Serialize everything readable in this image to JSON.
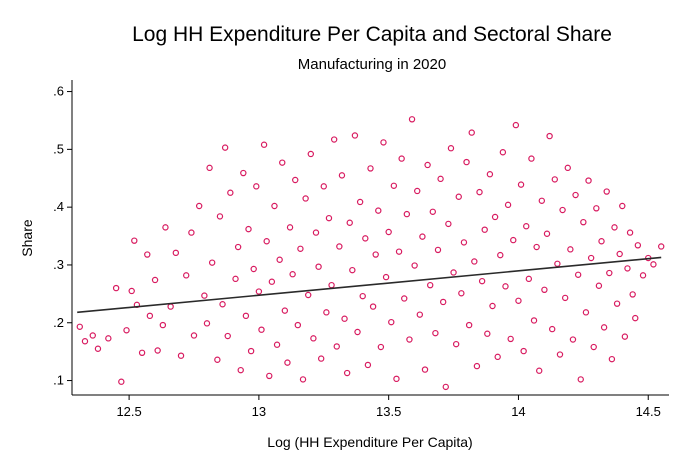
{
  "chart_data": {
    "type": "scatter",
    "title": "Log HH Expenditure Per Capita and Sectoral Share",
    "subtitle": "Manufacturing in 2020",
    "xlabel": "Log (HH Expenditure Per Capita)",
    "ylabel": "Share",
    "xlim": [
      12.28,
      14.58
    ],
    "ylim": [
      0.075,
      0.62
    ],
    "x_ticks": [
      12.5,
      13,
      13.5,
      14,
      14.5
    ],
    "x_tick_labels": [
      "12.5",
      "13",
      "13.5",
      "14",
      "14.5"
    ],
    "y_ticks": [
      0.1,
      0.2,
      0.3,
      0.4,
      0.5,
      0.6
    ],
    "y_tick_labels": [
      ".1",
      ".2",
      ".3",
      ".4",
      ".5",
      ".6"
    ],
    "grid": false,
    "legend": "none",
    "marker_color": "#d81b60",
    "line_color": "#2a2a2a",
    "series": [
      {
        "kind": "points",
        "points": [
          [
            12.31,
            0.193
          ],
          [
            12.33,
            0.168
          ],
          [
            12.36,
            0.178
          ],
          [
            12.38,
            0.155
          ],
          [
            12.42,
            0.173
          ],
          [
            12.45,
            0.26
          ],
          [
            12.47,
            0.098
          ],
          [
            12.49,
            0.187
          ],
          [
            12.51,
            0.255
          ],
          [
            12.52,
            0.342
          ],
          [
            12.53,
            0.231
          ],
          [
            12.55,
            0.148
          ],
          [
            12.57,
            0.318
          ],
          [
            12.58,
            0.212
          ],
          [
            12.6,
            0.274
          ],
          [
            12.61,
            0.152
          ],
          [
            12.63,
            0.196
          ],
          [
            12.64,
            0.365
          ],
          [
            12.66,
            0.228
          ],
          [
            12.68,
            0.321
          ],
          [
            12.7,
            0.143
          ],
          [
            12.72,
            0.282
          ],
          [
            12.74,
            0.356
          ],
          [
            12.75,
            0.178
          ],
          [
            12.77,
            0.402
          ],
          [
            12.79,
            0.247
          ],
          [
            12.8,
            0.199
          ],
          [
            12.81,
            0.468
          ],
          [
            12.82,
            0.304
          ],
          [
            12.84,
            0.136
          ],
          [
            12.85,
            0.384
          ],
          [
            12.86,
            0.232
          ],
          [
            12.87,
            0.503
          ],
          [
            12.88,
            0.177
          ],
          [
            12.89,
            0.425
          ],
          [
            12.91,
            0.276
          ],
          [
            12.92,
            0.331
          ],
          [
            12.93,
            0.118
          ],
          [
            12.94,
            0.459
          ],
          [
            12.95,
            0.212
          ],
          [
            12.96,
            0.362
          ],
          [
            12.97,
            0.151
          ],
          [
            12.98,
            0.293
          ],
          [
            12.99,
            0.436
          ],
          [
            13.0,
            0.254
          ],
          [
            13.01,
            0.188
          ],
          [
            13.02,
            0.508
          ],
          [
            13.03,
            0.341
          ],
          [
            13.04,
            0.108
          ],
          [
            13.05,
            0.271
          ],
          [
            13.06,
            0.402
          ],
          [
            13.07,
            0.162
          ],
          [
            13.08,
            0.309
          ],
          [
            13.09,
            0.477
          ],
          [
            13.1,
            0.221
          ],
          [
            13.11,
            0.131
          ],
          [
            13.12,
            0.365
          ],
          [
            13.13,
            0.284
          ],
          [
            13.14,
            0.447
          ],
          [
            13.15,
            0.196
          ],
          [
            13.16,
            0.328
          ],
          [
            13.17,
            0.102
          ],
          [
            13.18,
            0.415
          ],
          [
            13.19,
            0.248
          ],
          [
            13.2,
            0.492
          ],
          [
            13.21,
            0.173
          ],
          [
            13.22,
            0.356
          ],
          [
            13.23,
            0.297
          ],
          [
            13.24,
            0.138
          ],
          [
            13.25,
            0.436
          ],
          [
            13.26,
            0.218
          ],
          [
            13.27,
            0.381
          ],
          [
            13.28,
            0.265
          ],
          [
            13.29,
            0.517
          ],
          [
            13.3,
            0.159
          ],
          [
            13.31,
            0.332
          ],
          [
            13.32,
            0.455
          ],
          [
            13.33,
            0.207
          ],
          [
            13.34,
            0.113
          ],
          [
            13.35,
            0.373
          ],
          [
            13.36,
            0.291
          ],
          [
            13.37,
            0.524
          ],
          [
            13.38,
            0.184
          ],
          [
            13.39,
            0.409
          ],
          [
            13.4,
            0.246
          ],
          [
            13.41,
            0.346
          ],
          [
            13.42,
            0.127
          ],
          [
            13.43,
            0.467
          ],
          [
            13.44,
            0.228
          ],
          [
            13.45,
            0.318
          ],
          [
            13.46,
            0.394
          ],
          [
            13.47,
            0.158
          ],
          [
            13.48,
            0.512
          ],
          [
            13.49,
            0.279
          ],
          [
            13.5,
            0.357
          ],
          [
            13.51,
            0.201
          ],
          [
            13.52,
            0.437
          ],
          [
            13.53,
            0.103
          ],
          [
            13.54,
            0.323
          ],
          [
            13.55,
            0.484
          ],
          [
            13.56,
            0.242
          ],
          [
            13.57,
            0.388
          ],
          [
            13.58,
            0.171
          ],
          [
            13.59,
            0.552
          ],
          [
            13.6,
            0.299
          ],
          [
            13.61,
            0.428
          ],
          [
            13.62,
            0.214
          ],
          [
            13.63,
            0.349
          ],
          [
            13.64,
            0.119
          ],
          [
            13.65,
            0.473
          ],
          [
            13.66,
            0.265
          ],
          [
            13.67,
            0.392
          ],
          [
            13.68,
            0.182
          ],
          [
            13.69,
            0.326
          ],
          [
            13.7,
            0.449
          ],
          [
            13.71,
            0.236
          ],
          [
            13.72,
            0.089
          ],
          [
            13.73,
            0.371
          ],
          [
            13.74,
            0.502
          ],
          [
            13.75,
            0.287
          ],
          [
            13.76,
            0.163
          ],
          [
            13.77,
            0.418
          ],
          [
            13.78,
            0.251
          ],
          [
            13.79,
            0.339
          ],
          [
            13.8,
            0.478
          ],
          [
            13.81,
            0.196
          ],
          [
            13.82,
            0.529
          ],
          [
            13.83,
            0.306
          ],
          [
            13.84,
            0.125
          ],
          [
            13.85,
            0.426
          ],
          [
            13.86,
            0.272
          ],
          [
            13.87,
            0.361
          ],
          [
            13.88,
            0.181
          ],
          [
            13.89,
            0.457
          ],
          [
            13.9,
            0.229
          ],
          [
            13.91,
            0.383
          ],
          [
            13.92,
            0.141
          ],
          [
            13.93,
            0.317
          ],
          [
            13.94,
            0.495
          ],
          [
            13.95,
            0.263
          ],
          [
            13.96,
            0.404
          ],
          [
            13.97,
            0.172
          ],
          [
            13.98,
            0.343
          ],
          [
            13.99,
            0.542
          ],
          [
            14.0,
            0.238
          ],
          [
            14.01,
            0.439
          ],
          [
            14.02,
            0.151
          ],
          [
            14.03,
            0.367
          ],
          [
            14.04,
            0.276
          ],
          [
            14.05,
            0.484
          ],
          [
            14.06,
            0.204
          ],
          [
            14.07,
            0.331
          ],
          [
            14.08,
            0.117
          ],
          [
            14.09,
            0.411
          ],
          [
            14.1,
            0.257
          ],
          [
            14.11,
            0.354
          ],
          [
            14.12,
            0.523
          ],
          [
            14.13,
            0.189
          ],
          [
            14.14,
            0.448
          ],
          [
            14.15,
            0.302
          ],
          [
            14.16,
            0.145
          ],
          [
            14.17,
            0.395
          ],
          [
            14.18,
            0.243
          ],
          [
            14.19,
            0.468
          ],
          [
            14.2,
            0.327
          ],
          [
            14.21,
            0.171
          ],
          [
            14.22,
            0.421
          ],
          [
            14.23,
            0.283
          ],
          [
            14.24,
            0.102
          ],
          [
            14.25,
            0.374
          ],
          [
            14.26,
            0.218
          ],
          [
            14.27,
            0.446
          ],
          [
            14.28,
            0.312
          ],
          [
            14.29,
            0.158
          ],
          [
            14.3,
            0.398
          ],
          [
            14.31,
            0.264
          ],
          [
            14.32,
            0.341
          ],
          [
            14.33,
            0.192
          ],
          [
            14.34,
            0.427
          ],
          [
            14.35,
            0.286
          ],
          [
            14.36,
            0.137
          ],
          [
            14.37,
            0.365
          ],
          [
            14.38,
            0.233
          ],
          [
            14.39,
            0.319
          ],
          [
            14.4,
            0.402
          ],
          [
            14.41,
            0.176
          ],
          [
            14.42,
            0.294
          ],
          [
            14.43,
            0.356
          ],
          [
            14.44,
            0.249
          ],
          [
            14.45,
            0.208
          ],
          [
            14.46,
            0.334
          ],
          [
            14.48,
            0.282
          ],
          [
            14.5,
            0.312
          ],
          [
            14.52,
            0.301
          ],
          [
            14.55,
            0.332
          ]
        ]
      },
      {
        "kind": "fitted_line",
        "x": [
          12.3,
          14.55
        ],
        "y": [
          0.218,
          0.313
        ]
      }
    ]
  }
}
